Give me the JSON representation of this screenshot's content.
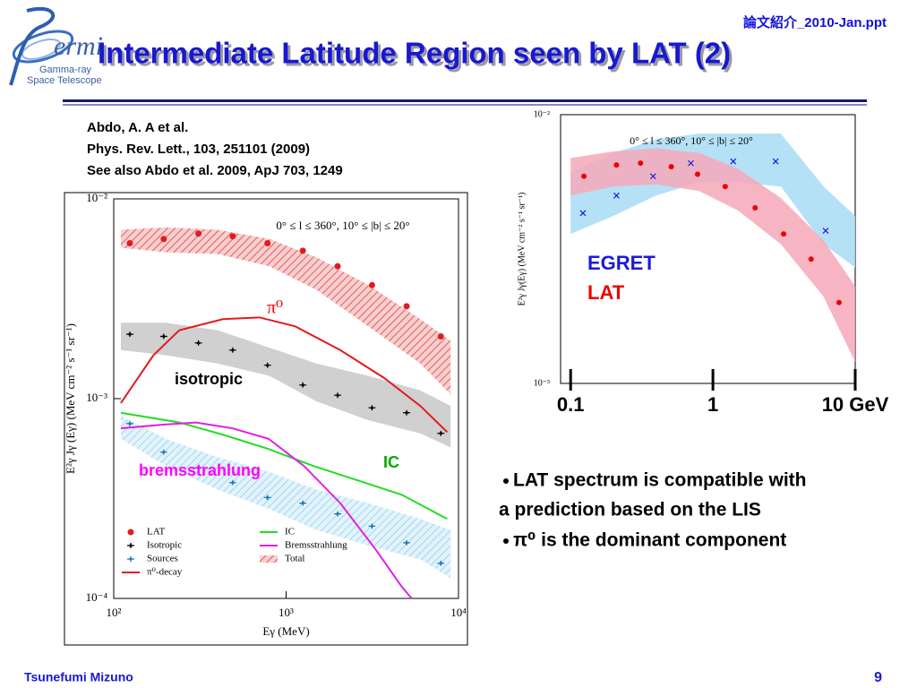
{
  "header": {
    "file_name": "論文紹介_2010-Jan.ppt",
    "title": "Intermediate Latitude Region seen by LAT (2)",
    "logo": {
      "wordmark": "ermi",
      "lines": [
        "Gamma-ray",
        "Space Telescope"
      ]
    }
  },
  "citation": [
    "Abdo, A. A et al.",
    "Phys. Rev. Lett., 103, 251101 (2009)",
    "See also Abdo et al. 2009, ApJ 703, 1249"
  ],
  "bullets": [
    {
      "lines": [
        "LAT spectrum is compatible with",
        "a prediction based on the LIS"
      ]
    },
    {
      "lines": [
        "π⁰ is the dominant component"
      ]
    }
  ],
  "footer": {
    "author": "Tsunefumi Mizuno",
    "page": "9"
  },
  "chart_data": [
    {
      "type": "line",
      "log_x": true,
      "log_y": true,
      "xlabel": "Eγ (MeV)",
      "ylabel": "E²γ Jγ (Eγ) (MeV cm⁻² s⁻¹ sr⁻¹)",
      "xlim": [
        100,
        10000
      ],
      "ylim": [
        0.0001,
        0.01
      ],
      "xticks": [
        {
          "value": 100,
          "label": "10²"
        },
        {
          "value": 1000,
          "label": "10³"
        },
        {
          "value": 10000,
          "label": "10⁴"
        }
      ],
      "yticks": [
        {
          "value": 0.0001,
          "label": "10⁻⁴"
        },
        {
          "value": 0.001,
          "label": "10⁻³"
        },
        {
          "value": 0.01,
          "label": "10⁻²"
        }
      ],
      "legend": "lower left",
      "legend_style": "symbols",
      "annotations": [
        {
          "text": "0° ≤ l ≤ 360°, 10° ≤ |b| ≤ 20°",
          "color": "#000000"
        },
        {
          "text": "π⁰",
          "color": "#ff0000"
        },
        {
          "text": "isotropic",
          "color": "#000000"
        },
        {
          "text": "IC",
          "color": "#00aa00"
        },
        {
          "text": "bremsstrahlung",
          "color": "#ff00ff"
        }
      ],
      "series": [
        {
          "name": "LAT",
          "color": "#e41a1c",
          "kind": "points",
          "marker": "dot",
          "x": [
            124,
            195,
            310,
            490,
            780,
            1250,
            1990,
            3150,
            5000,
            7900
          ],
          "values": [
            0.006,
            0.0063,
            0.0067,
            0.0065,
            0.006,
            0.0055,
            0.0046,
            0.0037,
            0.0029,
            0.00205
          ]
        },
        {
          "name": "Isotropic",
          "color": "#000000",
          "kind": "points",
          "marker": "bar",
          "x": [
            124,
            195,
            310,
            490,
            780,
            1250,
            1990,
            3150,
            5000,
            7900
          ],
          "values": [
            0.0021,
            0.00205,
            0.0019,
            0.00175,
            0.00147,
            0.00117,
            0.00104,
            0.0009,
            0.00085,
            0.00067
          ],
          "band_x": [
            110,
            200,
            400,
            800,
            1500,
            3000,
            6000,
            9000
          ],
          "band_upper": [
            0.0024,
            0.0024,
            0.0022,
            0.0018,
            0.0015,
            0.0013,
            0.0011,
            0.00092
          ],
          "band_lower": [
            0.00175,
            0.00165,
            0.0015,
            0.0013,
            0.00097,
            0.00078,
            0.00067,
            0.00057
          ],
          "band_color": "#c8c8c8"
        },
        {
          "name": "Sources",
          "color": "#1f78b4",
          "kind": "points",
          "marker": "bar",
          "x": [
            124,
            195,
            310,
            490,
            780,
            1250,
            1990,
            3150,
            5000,
            7900
          ],
          "values": [
            0.00075,
            0.00054,
            0.00045,
            0.00038,
            0.00032,
            0.0003,
            0.000265,
            0.00023,
            0.00019,
            0.00015
          ],
          "band_x": [
            110,
            200,
            400,
            800,
            1500,
            3000,
            6000,
            9000
          ],
          "band_upper": [
            0.00082,
            0.00063,
            0.00051,
            0.00043,
            0.00035,
            0.0003,
            0.00025,
            0.00022
          ],
          "band_lower": [
            0.00063,
            0.00046,
            0.00035,
            0.00028,
            0.00022,
            0.000184,
            0.000157,
            0.000126
          ],
          "band_color": "#8fd0ee",
          "band_hatch": true
        },
        {
          "name": "π⁰-decay",
          "color": "#e41a1c",
          "kind": "line",
          "x": [
            110,
            170,
            240,
            430,
            700,
            1130,
            2060,
            3700,
            6000,
            8600
          ],
          "values": [
            0.00095,
            0.00165,
            0.0022,
            0.0025,
            0.00255,
            0.0023,
            0.00175,
            0.00127,
            0.00092,
            0.00068
          ]
        },
        {
          "name": "IC",
          "color": "#22dd22",
          "kind": "line",
          "x": [
            110,
            240,
            430,
            790,
            1440,
            2600,
            4700,
            8600
          ],
          "values": [
            0.00085,
            0.00076,
            0.00066,
            0.00056,
            0.00046,
            0.00039,
            0.00033,
            0.00025
          ]
        },
        {
          "name": "Bremsstrahlung",
          "color": "#e020e0",
          "kind": "line",
          "x": [
            110,
            190,
            300,
            490,
            790,
            1270,
            2060,
            3320,
            4700,
            5350
          ],
          "values": [
            0.00071,
            0.00074,
            0.00076,
            0.00071,
            0.00063,
            0.00046,
            0.0003,
            0.000175,
            0.000114,
            0.0001
          ]
        },
        {
          "name": "Total",
          "color": "#e04040",
          "kind": "band",
          "hatch": true,
          "x": [
            110,
            200,
            400,
            800,
            1500,
            3000,
            6000,
            9000
          ],
          "upper": [
            0.007,
            0.0072,
            0.007,
            0.0063,
            0.0051,
            0.0037,
            0.0025,
            0.00195
          ],
          "lower": [
            0.0057,
            0.0054,
            0.0053,
            0.0046,
            0.0035,
            0.0023,
            0.0015,
            0.00105
          ]
        }
      ]
    },
    {
      "type": "line",
      "log_x": true,
      "log_y": true,
      "ylabel": "E²γ Jγ(Eγ) (MeV cm⁻² s⁻¹ sr⁻¹)",
      "xlim": [
        0.085,
        10
      ],
      "ylim": [
        0.001,
        0.01
      ],
      "xticks": [
        0.1,
        1,
        {
          "value": 10,
          "label": "10 GeV"
        }
      ],
      "yticks": [
        {
          "value": 0.001,
          "label": "10⁻³"
        },
        {
          "value": 0.01,
          "label": "10⁻²"
        }
      ],
      "legend": "center left",
      "legend_style": "colored-text",
      "annotations": [
        {
          "text": "0° ≤ l ≤ 360°, 10° ≤ |b| ≤ 20°",
          "color": "#000000"
        }
      ],
      "series": [
        {
          "name": "EGRET",
          "color": "#1a1add",
          "kind": "points",
          "marker": "x",
          "x": [
            0.122,
            0.21,
            0.38,
            0.7,
            1.39,
            2.76,
            6.2
          ],
          "values": [
            0.0043,
            0.005,
            0.0059,
            0.0066,
            0.0067,
            0.0067,
            0.0037
          ],
          "band_x": [
            0.1,
            0.2,
            0.4,
            0.8,
            1.5,
            3,
            6,
            10
          ],
          "band_upper": [
            0.0061,
            0.0072,
            0.0081,
            0.0085,
            0.0085,
            0.0085,
            0.0054,
            0.0042
          ],
          "band_lower": [
            0.0036,
            0.0042,
            0.005,
            0.0056,
            0.0056,
            0.0054,
            0.0033,
            0.0027
          ],
          "band_color": "#a8dcf5"
        },
        {
          "name": "LAT",
          "color": "#ee0000",
          "kind": "points",
          "marker": "dot",
          "x": [
            0.124,
            0.21,
            0.31,
            0.51,
            0.78,
            1.22,
            1.98,
            3.14,
            4.9,
            7.7
          ],
          "values": [
            0.0059,
            0.0065,
            0.0066,
            0.0064,
            0.006,
            0.0054,
            0.0045,
            0.0036,
            0.0029,
            0.002
          ],
          "band_x": [
            0.1,
            0.2,
            0.4,
            0.8,
            1.5,
            3,
            6,
            10
          ],
          "band_upper": [
            0.0069,
            0.0073,
            0.0075,
            0.0072,
            0.0063,
            0.0049,
            0.0034,
            0.0023
          ],
          "band_lower": [
            0.005,
            0.0054,
            0.0055,
            0.0052,
            0.0044,
            0.0033,
            0.0021,
            0.0012
          ],
          "band_color": "#f6a8b8"
        }
      ]
    }
  ]
}
